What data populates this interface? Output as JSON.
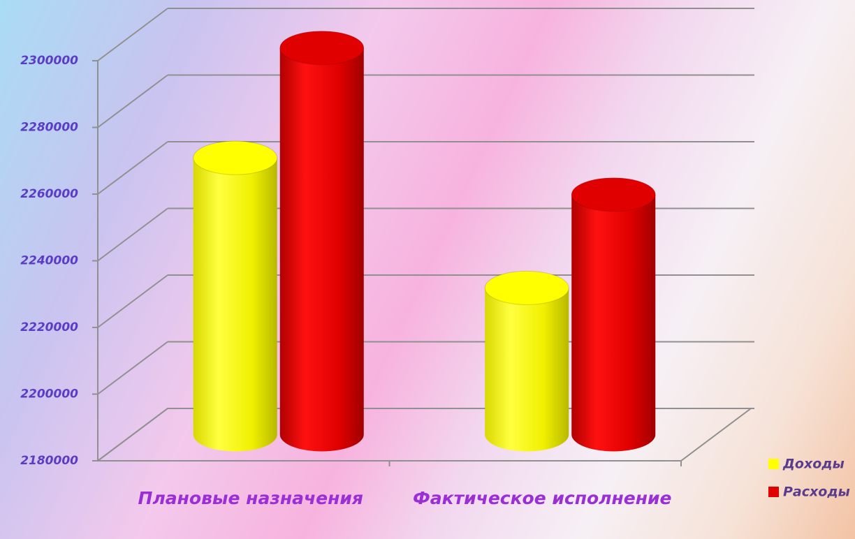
{
  "chart_data": {
    "type": "bar3d",
    "categories": [
      "Плановые назначения",
      "Фактическое исполнение"
    ],
    "series": [
      {
        "name": "Доходы",
        "color": "#ffff00",
        "values": [
          2263000,
          2224000
        ]
      },
      {
        "name": "Расходы",
        "color": "#e00000",
        "values": [
          2296000,
          2252000
        ]
      }
    ],
    "ylim": [
      2180000,
      2300000
    ],
    "yticks": [
      2180000,
      2200000,
      2220000,
      2240000,
      2260000,
      2280000,
      2300000
    ],
    "grid": true,
    "legend": "right"
  }
}
